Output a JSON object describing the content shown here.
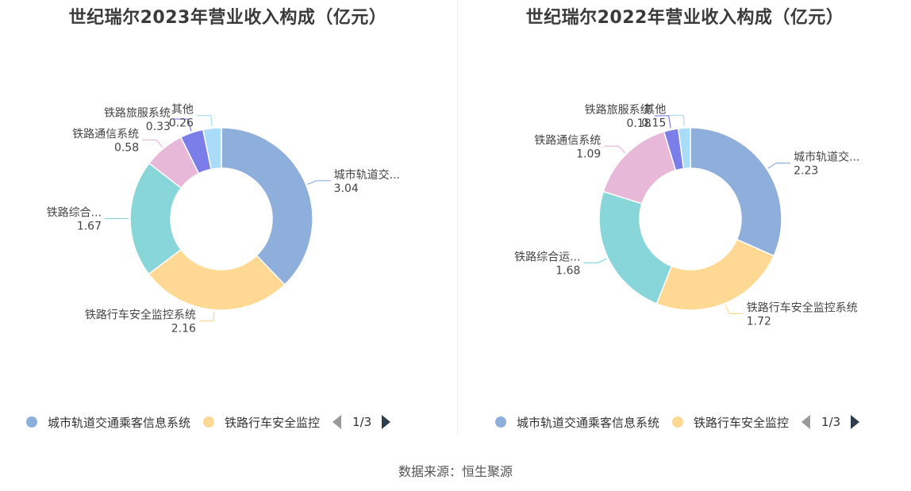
{
  "source_label": "数据来源：恒生聚源",
  "colors": [
    "#8eaedb",
    "#ffd994",
    "#88d6d9",
    "#e8b8d8",
    "#7b7de8",
    "#a8dcf8"
  ],
  "chart_data": [
    {
      "type": "pie",
      "title": "世纪瑞尔2023年营业收入构成（亿元）",
      "slices": [
        {
          "name": "城市轨道交通乘客信息系统",
          "label": "城市轨道交...",
          "value": 3.04
        },
        {
          "name": "铁路行车安全监控系统",
          "label": "铁路行车安全监控系统",
          "value": 2.16
        },
        {
          "name": "铁路综合运维系统",
          "label": "铁路综合...",
          "value": 1.67
        },
        {
          "name": "铁路通信系统",
          "label": "铁路通信系统",
          "value": 0.58
        },
        {
          "name": "铁路旅服系统",
          "label": "铁路旅服系统",
          "value": 0.33
        },
        {
          "name": "其他",
          "label": "其他",
          "value": 0.26
        }
      ],
      "legend": {
        "items": [
          "城市轨道交通乘客信息系统",
          "铁路行车安全监控"
        ],
        "page": "1/3",
        "placement": "bottom"
      }
    },
    {
      "type": "pie",
      "title": "世纪瑞尔2022年营业收入构成（亿元）",
      "slices": [
        {
          "name": "城市轨道交通乘客信息系统",
          "label": "城市轨道交...",
          "value": 2.23
        },
        {
          "name": "铁路行车安全监控系统",
          "label": "铁路行车安全监控系统",
          "value": 1.72
        },
        {
          "name": "铁路综合运维系统",
          "label": "铁路综合运...",
          "value": 1.68
        },
        {
          "name": "铁路通信系统",
          "label": "铁路通信系统",
          "value": 1.09
        },
        {
          "name": "铁路旅服系统",
          "label": "铁路旅服系统",
          "value": 0.18
        },
        {
          "name": "其他",
          "label": "其他",
          "value": 0.15
        }
      ],
      "legend": {
        "items": [
          "城市轨道交通乘客信息系统",
          "铁路行车安全监控"
        ],
        "page": "1/3",
        "placement": "bottom"
      }
    }
  ]
}
